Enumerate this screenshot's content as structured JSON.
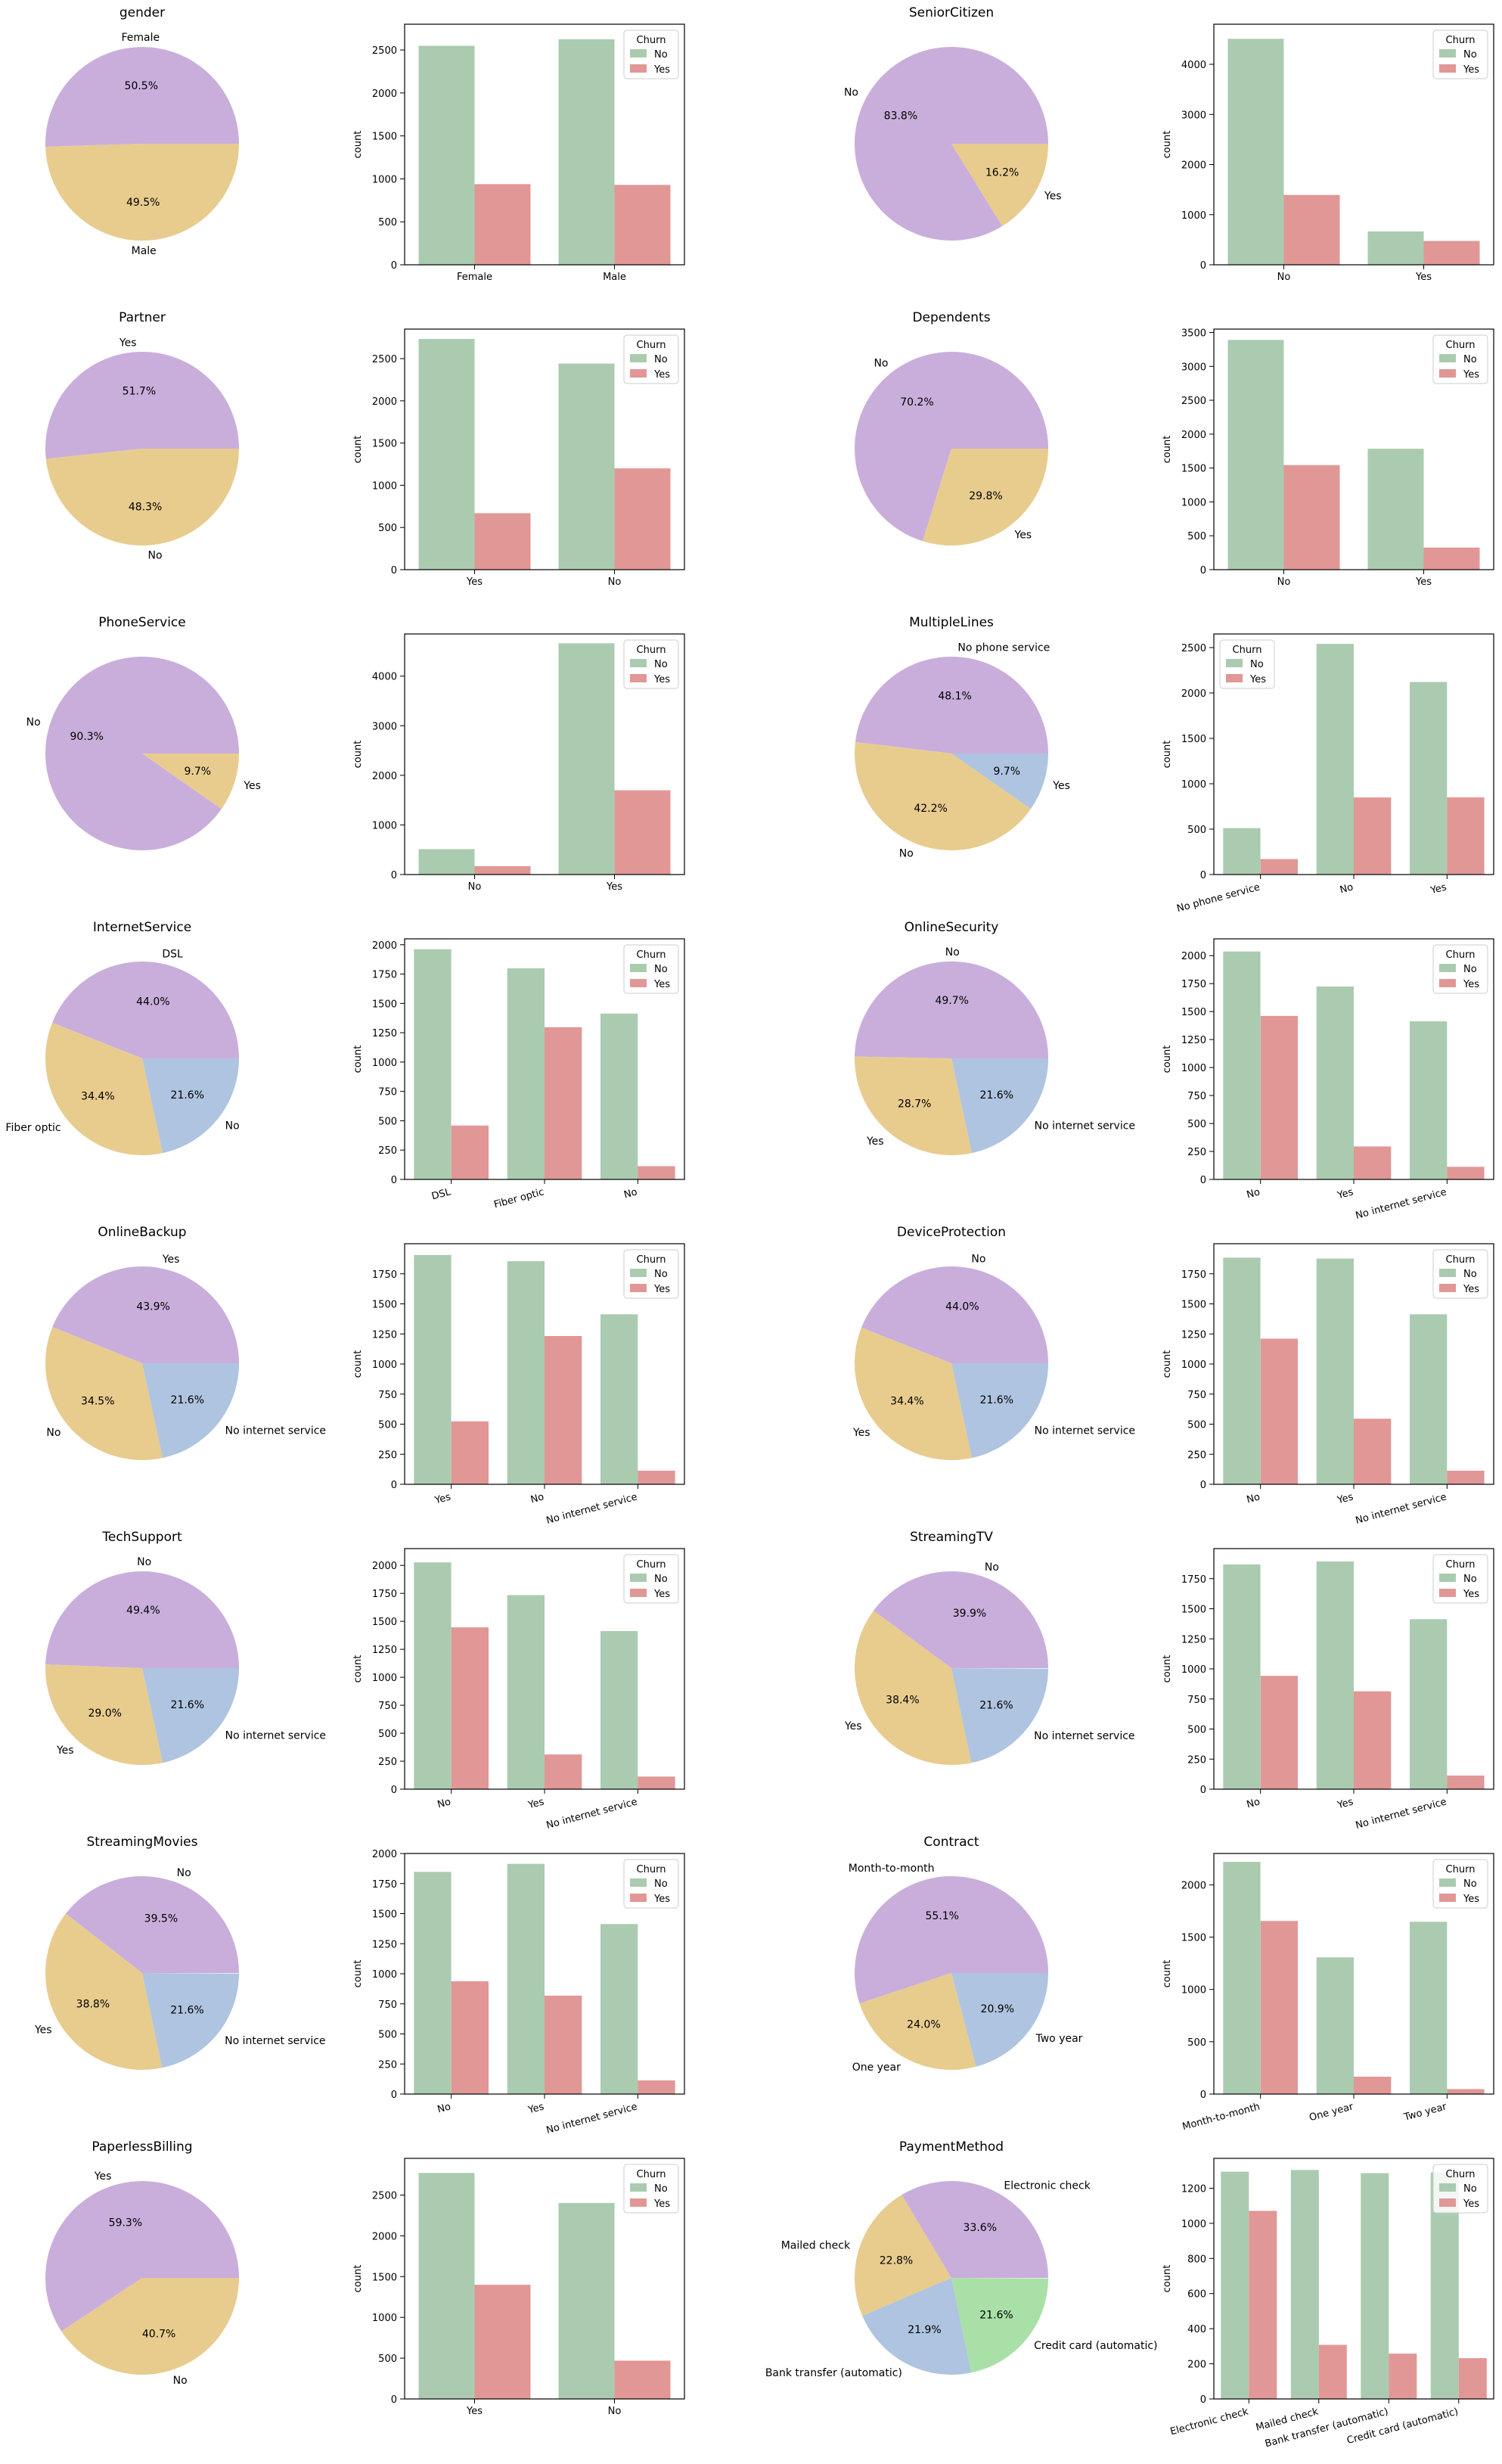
{
  "colors": {
    "pie": [
      "#c9aedc",
      "#e8cc8e",
      "#aec4e0",
      "#a8e0a8"
    ],
    "bar_no": "#aacbaf",
    "bar_yes": "#e19796",
    "axis": "#000000"
  },
  "legend_title": "Churn",
  "count_label": "count",
  "chart_data": [
    {
      "feature": "gender",
      "type": "pie",
      "title": "gender",
      "labels": [
        "Female",
        "Male"
      ],
      "pct": [
        50.5,
        49.5
      ],
      "pct_labels": [
        "50.5%",
        "49.5%"
      ],
      "bar": {
        "type": "bar",
        "categories": [
          "Female",
          "Male"
        ],
        "ylim": [
          0,
          2800
        ],
        "yticks": [
          0,
          500,
          1000,
          1500,
          2000,
          2500
        ],
        "xrot": false,
        "legend": "top-right",
        "series": [
          {
            "name": "No",
            "values": [
              2549,
              2625
            ]
          },
          {
            "name": "Yes",
            "values": [
              939,
              930
            ]
          }
        ]
      }
    },
    {
      "feature": "SeniorCitizen",
      "type": "pie",
      "title": "SeniorCitizen",
      "labels": [
        "No",
        "Yes"
      ],
      "pct": [
        83.8,
        16.2
      ],
      "pct_labels": [
        "83.8%",
        "16.2%"
      ],
      "bar": {
        "type": "bar",
        "categories": [
          "No",
          "Yes"
        ],
        "ylim": [
          0,
          4800
        ],
        "yticks": [
          0,
          1000,
          2000,
          3000,
          4000
        ],
        "xrot": false,
        "legend": "top-right",
        "series": [
          {
            "name": "No",
            "values": [
              4508,
              666
            ]
          },
          {
            "name": "Yes",
            "values": [
              1393,
              476
            ]
          }
        ]
      }
    },
    {
      "feature": "Partner",
      "type": "pie",
      "title": "Partner",
      "labels": [
        "Yes",
        "No"
      ],
      "pct": [
        51.7,
        48.3
      ],
      "pct_labels": [
        "51.7%",
        "48.3%"
      ],
      "bar": {
        "type": "bar",
        "categories": [
          "Yes",
          "No"
        ],
        "ylim": [
          0,
          2850
        ],
        "yticks": [
          0,
          500,
          1000,
          1500,
          2000,
          2500
        ],
        "xrot": false,
        "legend": "top-right",
        "series": [
          {
            "name": "No",
            "values": [
              2733,
              2441
            ]
          },
          {
            "name": "Yes",
            "values": [
              669,
              1200
            ]
          }
        ]
      }
    },
    {
      "feature": "Dependents",
      "type": "pie",
      "title": "Dependents",
      "labels": [
        "No",
        "Yes"
      ],
      "pct": [
        70.2,
        29.8
      ],
      "pct_labels": [
        "70.2%",
        "29.8%"
      ],
      "bar": {
        "type": "bar",
        "categories": [
          "No",
          "Yes"
        ],
        "ylim": [
          0,
          3550
        ],
        "yticks": [
          0,
          500,
          1000,
          1500,
          2000,
          2500,
          3000,
          3500
        ],
        "xrot": false,
        "legend": "top-right",
        "series": [
          {
            "name": "No",
            "values": [
              3390,
              1784
            ]
          },
          {
            "name": "Yes",
            "values": [
              1543,
              326
            ]
          }
        ]
      }
    },
    {
      "feature": "PhoneService",
      "type": "pie",
      "title": "PhoneService",
      "labels": [
        "No",
        "Yes"
      ],
      "pct": [
        90.3,
        9.7
      ],
      "pct_labels": [
        "90.3%",
        "9.7%"
      ],
      "bar": {
        "type": "bar",
        "categories": [
          "No",
          "Yes"
        ],
        "ylim": [
          0,
          4850
        ],
        "yticks": [
          0,
          1000,
          2000,
          3000,
          4000
        ],
        "xrot": false,
        "legend": "top-right",
        "series": [
          {
            "name": "No",
            "values": [
              512,
              4662
            ]
          },
          {
            "name": "Yes",
            "values": [
              170,
              1699
            ]
          }
        ]
      }
    },
    {
      "feature": "MultipleLines",
      "type": "pie",
      "title": "MultipleLines",
      "labels": [
        "No phone service",
        "No",
        "Yes"
      ],
      "pct": [
        48.1,
        42.2,
        9.7
      ],
      "pct_labels": [
        "48.1%",
        "42.2%",
        "9.7%"
      ],
      "bar": {
        "type": "bar",
        "categories": [
          "No phone service",
          "No",
          "Yes"
        ],
        "ylim": [
          0,
          2650
        ],
        "yticks": [
          0,
          500,
          1000,
          1500,
          2000,
          2500
        ],
        "xrot": true,
        "legend": "top-left",
        "series": [
          {
            "name": "No",
            "values": [
              512,
              2541,
              2121
            ]
          },
          {
            "name": "Yes",
            "values": [
              170,
              849,
              850
            ]
          }
        ]
      }
    },
    {
      "feature": "InternetService",
      "type": "pie",
      "title": "InternetService",
      "labels": [
        "DSL",
        "Fiber optic",
        "No"
      ],
      "pct": [
        44.0,
        34.4,
        21.6
      ],
      "pct_labels": [
        "44.0%",
        "34.4%",
        "21.6%"
      ],
      "bar": {
        "type": "bar",
        "categories": [
          "DSL",
          "Fiber optic",
          "No"
        ],
        "ylim": [
          0,
          2050
        ],
        "yticks": [
          0,
          250,
          500,
          750,
          1000,
          1250,
          1500,
          1750,
          2000
        ],
        "xrot": true,
        "legend": "top-right",
        "series": [
          {
            "name": "No",
            "values": [
              1962,
              1799,
              1413
            ]
          },
          {
            "name": "Yes",
            "values": [
              459,
              1297,
              113
            ]
          }
        ]
      }
    },
    {
      "feature": "OnlineSecurity",
      "type": "pie",
      "title": "OnlineSecurity",
      "labels": [
        "No",
        "Yes",
        "No internet service"
      ],
      "pct": [
        49.7,
        28.7,
        21.6
      ],
      "pct_labels": [
        "49.7%",
        "28.7%",
        "21.6%"
      ],
      "bar": {
        "type": "bar",
        "categories": [
          "No",
          "Yes",
          "No internet service"
        ],
        "ylim": [
          0,
          2150
        ],
        "yticks": [
          0,
          250,
          500,
          750,
          1000,
          1250,
          1500,
          1750,
          2000
        ],
        "xrot": true,
        "legend": "top-right",
        "series": [
          {
            "name": "No",
            "values": [
              2037,
              1724,
              1413
            ]
          },
          {
            "name": "Yes",
            "values": [
              1461,
              295,
              113
            ]
          }
        ]
      }
    },
    {
      "feature": "OnlineBackup",
      "type": "pie",
      "title": "OnlineBackup",
      "labels": [
        "Yes",
        "No",
        "No internet service"
      ],
      "pct": [
        43.9,
        34.5,
        21.6
      ],
      "pct_labels": [
        "43.9%",
        "34.5%",
        "21.6%"
      ],
      "bar": {
        "type": "bar",
        "categories": [
          "Yes",
          "No",
          "No internet service"
        ],
        "ylim": [
          0,
          2000
        ],
        "yticks": [
          0,
          250,
          500,
          750,
          1000,
          1250,
          1500,
          1750
        ],
        "xrot": true,
        "legend": "top-right",
        "series": [
          {
            "name": "No",
            "values": [
              1906,
              1855,
              1413
            ]
          },
          {
            "name": "Yes",
            "values": [
              523,
              1233,
              113
            ]
          }
        ]
      }
    },
    {
      "feature": "DeviceProtection",
      "type": "pie",
      "title": "DeviceProtection",
      "labels": [
        "No",
        "Yes",
        "No internet service"
      ],
      "pct": [
        44.0,
        34.4,
        21.6
      ],
      "pct_labels": [
        "44.0%",
        "34.4%",
        "21.6%"
      ],
      "bar": {
        "type": "bar",
        "categories": [
          "No",
          "Yes",
          "No internet service"
        ],
        "ylim": [
          0,
          2000
        ],
        "yticks": [
          0,
          250,
          500,
          750,
          1000,
          1250,
          1500,
          1750
        ],
        "xrot": true,
        "legend": "top-right",
        "series": [
          {
            "name": "No",
            "values": [
              1884,
              1877,
              1413
            ]
          },
          {
            "name": "Yes",
            "values": [
              1211,
              545,
              113
            ]
          }
        ]
      }
    },
    {
      "feature": "TechSupport",
      "type": "pie",
      "title": "TechSupport",
      "labels": [
        "No",
        "Yes",
        "No internet service"
      ],
      "pct": [
        49.4,
        29.0,
        21.6
      ],
      "pct_labels": [
        "49.4%",
        "29.0%",
        "21.6%"
      ],
      "bar": {
        "type": "bar",
        "categories": [
          "No",
          "Yes",
          "No internet service"
        ],
        "ylim": [
          0,
          2150
        ],
        "yticks": [
          0,
          250,
          500,
          750,
          1000,
          1250,
          1500,
          1750,
          2000
        ],
        "xrot": true,
        "legend": "top-right",
        "series": [
          {
            "name": "No",
            "values": [
              2027,
              1734,
              1413
            ]
          },
          {
            "name": "Yes",
            "values": [
              1446,
              310,
              113
            ]
          }
        ]
      }
    },
    {
      "feature": "StreamingTV",
      "type": "pie",
      "title": "StreamingTV",
      "labels": [
        "No",
        "Yes",
        "No internet service"
      ],
      "pct": [
        39.9,
        38.4,
        21.6
      ],
      "pct_labels": [
        "39.9%",
        "38.4%",
        "21.6%"
      ],
      "bar": {
        "type": "bar",
        "categories": [
          "No",
          "Yes",
          "No internet service"
        ],
        "ylim": [
          0,
          2000
        ],
        "yticks": [
          0,
          250,
          500,
          750,
          1000,
          1250,
          1500,
          1750
        ],
        "xrot": true,
        "legend": "top-right",
        "series": [
          {
            "name": "No",
            "values": [
              1868,
              1893,
              1413
            ]
          },
          {
            "name": "Yes",
            "values": [
              942,
              814,
              113
            ]
          }
        ]
      }
    },
    {
      "feature": "StreamingMovies",
      "type": "pie",
      "title": "StreamingMovies",
      "labels": [
        "No",
        "Yes",
        "No internet service"
      ],
      "pct": [
        39.5,
        38.8,
        21.6
      ],
      "pct_labels": [
        "39.5%",
        "38.8%",
        "21.6%"
      ],
      "bar": {
        "type": "bar",
        "categories": [
          "No",
          "Yes",
          "No internet service"
        ],
        "ylim": [
          0,
          2000
        ],
        "yticks": [
          0,
          250,
          500,
          750,
          1000,
          1250,
          1500,
          1750,
          2000
        ],
        "xrot": true,
        "legend": "top-right",
        "series": [
          {
            "name": "No",
            "values": [
              1847,
              1914,
              1413
            ]
          },
          {
            "name": "Yes",
            "values": [
              938,
              818,
              113
            ]
          }
        ]
      }
    },
    {
      "feature": "Contract",
      "type": "pie",
      "title": "Contract",
      "labels": [
        "Month-to-month",
        "One year",
        "Two year"
      ],
      "pct": [
        55.1,
        24.0,
        20.9
      ],
      "pct_labels": [
        "55.1%",
        "24.0%",
        "20.9%"
      ],
      "bar": {
        "type": "bar",
        "categories": [
          "Month-to-month",
          "One year",
          "Two year"
        ],
        "ylim": [
          0,
          2300
        ],
        "yticks": [
          0,
          500,
          1000,
          1500,
          2000
        ],
        "xrot": true,
        "legend": "top-right",
        "series": [
          {
            "name": "No",
            "values": [
              2220,
              1307,
              1647
            ]
          },
          {
            "name": "Yes",
            "values": [
              1655,
              166,
              48
            ]
          }
        ]
      }
    },
    {
      "feature": "PaperlessBilling",
      "type": "pie",
      "title": "PaperlessBilling",
      "labels": [
        "Yes",
        "No"
      ],
      "pct": [
        59.3,
        40.7
      ],
      "pct_labels": [
        "59.3%",
        "40.7%"
      ],
      "bar": {
        "type": "bar",
        "categories": [
          "Yes",
          "No"
        ],
        "ylim": [
          0,
          2950
        ],
        "yticks": [
          0,
          500,
          1000,
          1500,
          2000,
          2500
        ],
        "xrot": false,
        "legend": "top-right",
        "series": [
          {
            "name": "No",
            "values": [
              2771,
              2403
            ]
          },
          {
            "name": "Yes",
            "values": [
              1400,
              469
            ]
          }
        ]
      }
    },
    {
      "feature": "PaymentMethod",
      "type": "pie",
      "title": "PaymentMethod",
      "labels": [
        "Electronic check",
        "Mailed check",
        "Bank transfer (automatic)",
        "Credit card (automatic)"
      ],
      "pct": [
        33.6,
        22.8,
        21.9,
        21.6
      ],
      "pct_labels": [
        "33.6%",
        "22.8%",
        "21.9%",
        "21.6%"
      ],
      "bar": {
        "type": "bar",
        "categories": [
          "Electronic check",
          "Mailed check",
          "Bank transfer (automatic)",
          "Credit card (automatic)"
        ],
        "ylim": [
          0,
          1370
        ],
        "yticks": [
          0,
          200,
          400,
          600,
          800,
          1000,
          1200
        ],
        "xrot": true,
        "legend": "top-right",
        "series": [
          {
            "name": "No",
            "values": [
              1294,
              1304,
              1286,
              1290
            ]
          },
          {
            "name": "Yes",
            "values": [
              1071,
              308,
              258,
              232
            ]
          }
        ]
      }
    }
  ]
}
